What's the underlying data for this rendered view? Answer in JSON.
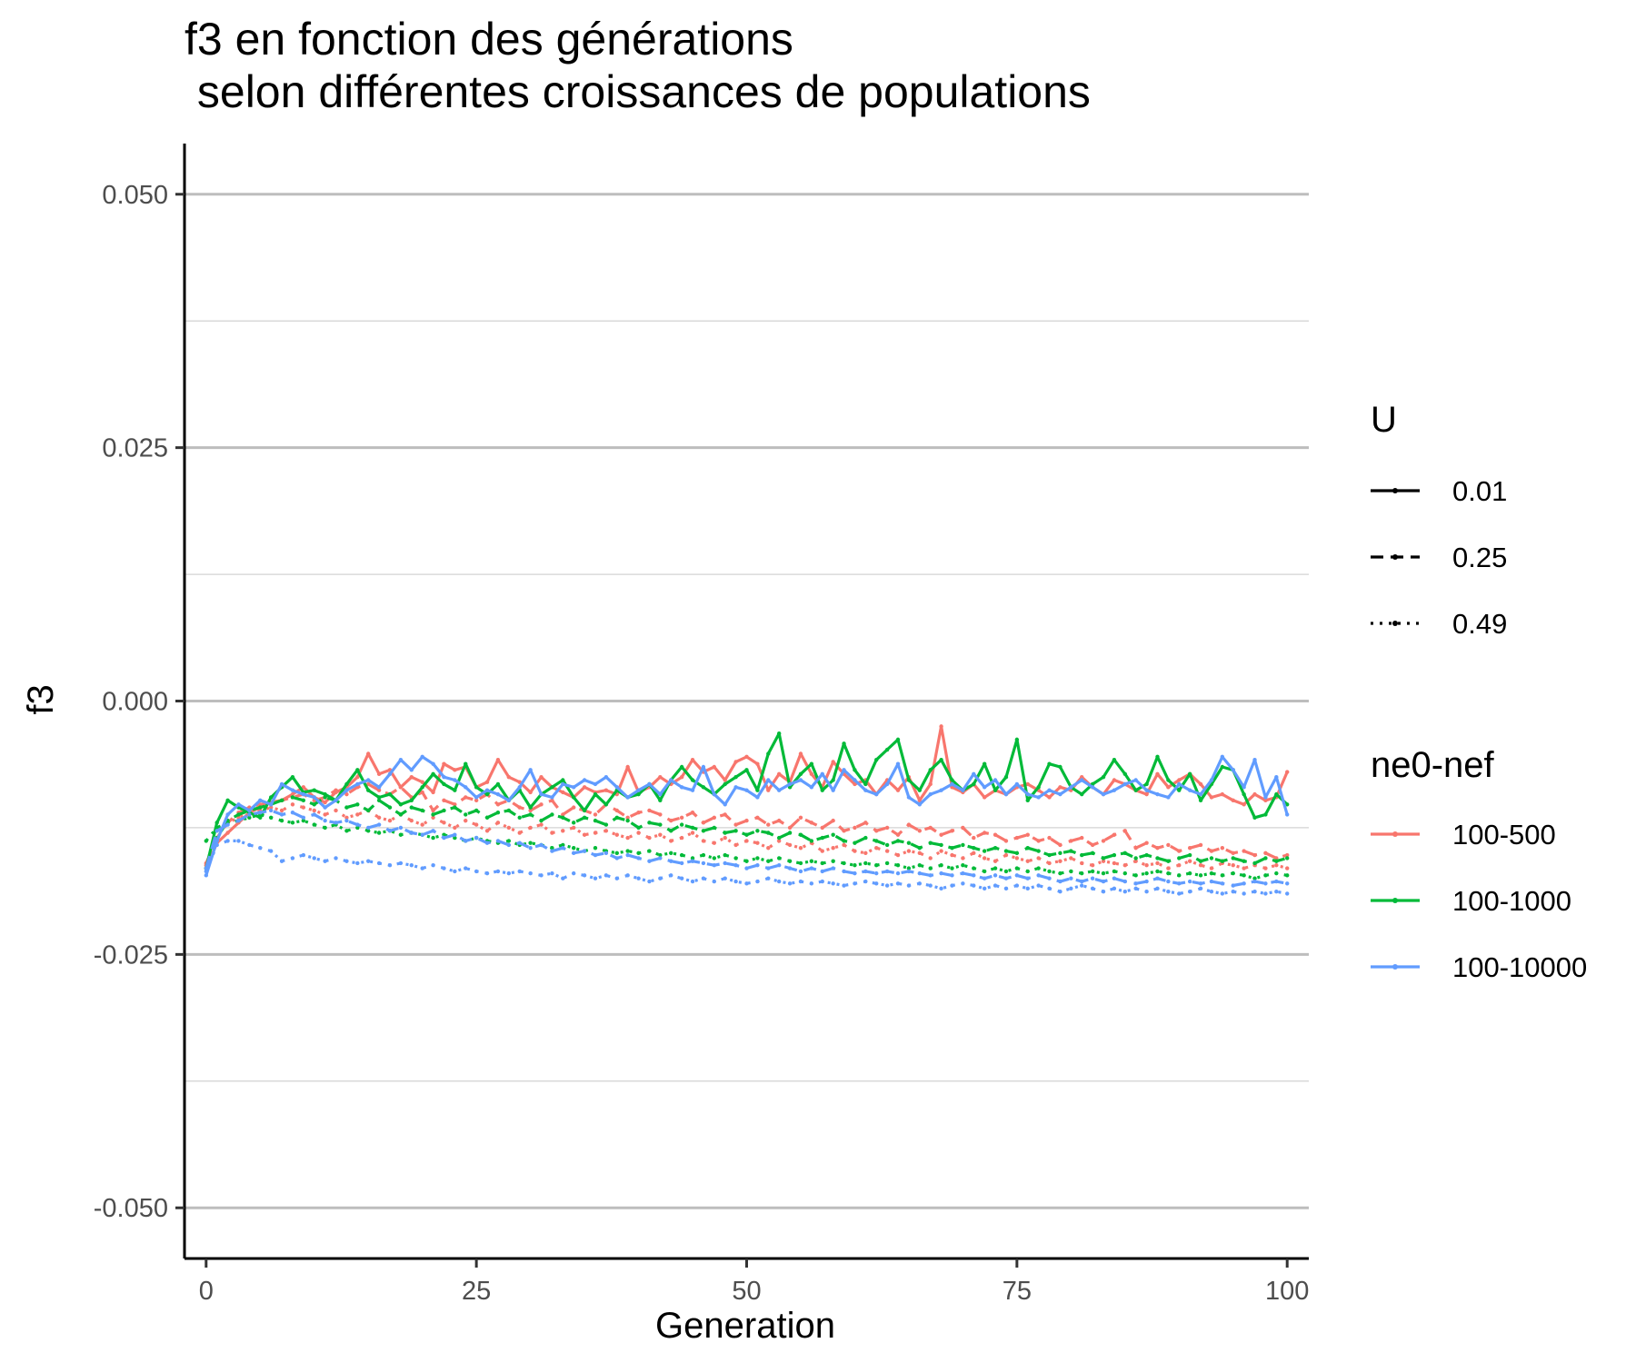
{
  "chart_data": {
    "type": "line",
    "title": "f3 en fonction des générations",
    "subtitle": " selon différentes croissances de populations",
    "xlabel": "Generation",
    "ylabel": "f3",
    "xlim": [
      -2,
      102
    ],
    "ylim": [
      -0.055,
      0.055
    ],
    "x_ticks": [
      0,
      25,
      50,
      75,
      100
    ],
    "x_tick_labels": [
      "0",
      "25",
      "50",
      "75",
      "100"
    ],
    "y_ticks": [
      0.05,
      0.025,
      0.0,
      -0.025,
      -0.05
    ],
    "y_tick_labels": [
      "0.050",
      "0.025",
      "0.000",
      "-0.025",
      "-0.050"
    ],
    "y_minor_gridlines": [
      0.0375,
      0.0125,
      -0.0125,
      -0.0375
    ],
    "grid": "horizontal",
    "legend_position": "right",
    "legend_linetype": {
      "title": "U",
      "entries": [
        {
          "label": "0.01",
          "dash": "solid"
        },
        {
          "label": "0.25",
          "dash": "dashed"
        },
        {
          "label": "0.49",
          "dash": "dotted"
        }
      ]
    },
    "legend_color": {
      "title": "ne0-nef",
      "entries": [
        {
          "label": "100-500",
          "color": "#F8766D"
        },
        {
          "label": "100-1000",
          "color": "#00BA38"
        },
        {
          "label": "100-10000",
          "color": "#619CFF"
        }
      ]
    },
    "x_range": {
      "start": 0,
      "end": 100,
      "step": 1
    },
    "series": [
      {
        "name": "100-500 / U=0.01",
        "color": "#F8766D",
        "dash": "solid",
        "values": [
          -0.0165,
          -0.014,
          -0.013,
          -0.012,
          -0.011,
          -0.0105,
          -0.01,
          -0.0098,
          -0.0092,
          -0.0085,
          -0.0095,
          -0.01,
          -0.009,
          -0.0085,
          -0.0075,
          -0.0052,
          -0.0072,
          -0.0068,
          -0.0085,
          -0.0075,
          -0.008,
          -0.009,
          -0.0062,
          -0.0068,
          -0.0065,
          -0.0085,
          -0.008,
          -0.0058,
          -0.0075,
          -0.008,
          -0.009,
          -0.0075,
          -0.0085,
          -0.009,
          -0.0095,
          -0.0085,
          -0.009,
          -0.0088,
          -0.0092,
          -0.0065,
          -0.009,
          -0.0085,
          -0.0075,
          -0.0082,
          -0.0075,
          -0.0058,
          -0.007,
          -0.0065,
          -0.0078,
          -0.006,
          -0.0055,
          -0.0062,
          -0.0088,
          -0.0072,
          -0.008,
          -0.0052,
          -0.0072,
          -0.0085,
          -0.006,
          -0.0072,
          -0.0082,
          -0.0078,
          -0.0092,
          -0.0078,
          -0.0088,
          -0.0075,
          -0.0098,
          -0.0082,
          -0.0025,
          -0.0085,
          -0.009,
          -0.0082,
          -0.0095,
          -0.0088,
          -0.0092,
          -0.0085,
          -0.0082,
          -0.0088,
          -0.0095,
          -0.0085,
          -0.0088,
          -0.0075,
          -0.0085,
          -0.0092,
          -0.0078,
          -0.0082,
          -0.0088,
          -0.0092,
          -0.0072,
          -0.0085,
          -0.0078,
          -0.0072,
          -0.0082,
          -0.0095,
          -0.0092,
          -0.0098,
          -0.0102,
          -0.0092,
          -0.0098,
          -0.0095,
          -0.007
        ]
      },
      {
        "name": "100-500 / U=0.25",
        "color": "#F8766D",
        "dash": "dashed",
        "values": [
          -0.016,
          -0.0135,
          -0.012,
          -0.011,
          -0.0105,
          -0.0102,
          -0.01,
          -0.0098,
          -0.0095,
          -0.0092,
          -0.0098,
          -0.0095,
          -0.0088,
          -0.0092,
          -0.0085,
          -0.0082,
          -0.0088,
          -0.0092,
          -0.0085,
          -0.0095,
          -0.009,
          -0.0108,
          -0.0098,
          -0.0102,
          -0.0095,
          -0.0098,
          -0.0092,
          -0.0102,
          -0.0098,
          -0.0105,
          -0.0108,
          -0.0102,
          -0.0098,
          -0.0112,
          -0.0105,
          -0.0108,
          -0.0112,
          -0.0102,
          -0.0108,
          -0.0115,
          -0.011,
          -0.0108,
          -0.0112,
          -0.0118,
          -0.0115,
          -0.011,
          -0.012,
          -0.0115,
          -0.0112,
          -0.0122,
          -0.0118,
          -0.0115,
          -0.0122,
          -0.0118,
          -0.0125,
          -0.0115,
          -0.012,
          -0.0125,
          -0.0118,
          -0.0128,
          -0.0125,
          -0.012,
          -0.0128,
          -0.0125,
          -0.0132,
          -0.0122,
          -0.0128,
          -0.0125,
          -0.0132,
          -0.0128,
          -0.0125,
          -0.0135,
          -0.013,
          -0.0132,
          -0.0138,
          -0.0135,
          -0.0132,
          -0.0138,
          -0.0135,
          -0.0142,
          -0.0138,
          -0.0135,
          -0.0142,
          -0.0138,
          -0.0132,
          -0.0128,
          -0.0145,
          -0.014,
          -0.0145,
          -0.0142,
          -0.0148,
          -0.0145,
          -0.0142,
          -0.0148,
          -0.0145,
          -0.015,
          -0.0148,
          -0.0152,
          -0.015,
          -0.0155,
          -0.0152
        ]
      },
      {
        "name": "100-500 / U=0.49",
        "color": "#F8766D",
        "dash": "dotted",
        "values": [
          -0.0162,
          -0.0128,
          -0.012,
          -0.0115,
          -0.011,
          -0.0108,
          -0.0105,
          -0.0108,
          -0.0102,
          -0.0105,
          -0.0108,
          -0.0112,
          -0.0108,
          -0.0115,
          -0.0112,
          -0.0108,
          -0.0115,
          -0.0118,
          -0.0112,
          -0.0118,
          -0.0122,
          -0.0115,
          -0.012,
          -0.0125,
          -0.0118,
          -0.0122,
          -0.0128,
          -0.012,
          -0.0125,
          -0.013,
          -0.0125,
          -0.0122,
          -0.013,
          -0.0128,
          -0.0125,
          -0.0132,
          -0.013,
          -0.0128,
          -0.0132,
          -0.0135,
          -0.013,
          -0.0135,
          -0.0132,
          -0.0138,
          -0.0135,
          -0.013,
          -0.0138,
          -0.014,
          -0.0135,
          -0.0142,
          -0.0138,
          -0.014,
          -0.0145,
          -0.0138,
          -0.0142,
          -0.0145,
          -0.014,
          -0.0148,
          -0.0145,
          -0.0142,
          -0.0148,
          -0.015,
          -0.0145,
          -0.0148,
          -0.0152,
          -0.0148,
          -0.015,
          -0.0155,
          -0.0148,
          -0.0152,
          -0.0155,
          -0.015,
          -0.0155,
          -0.0158,
          -0.0152,
          -0.0155,
          -0.0158,
          -0.0155,
          -0.016,
          -0.0158,
          -0.0155,
          -0.016,
          -0.0162,
          -0.0158,
          -0.016,
          -0.0162,
          -0.0158,
          -0.0162,
          -0.016,
          -0.0165,
          -0.0162,
          -0.0158,
          -0.0162,
          -0.0165,
          -0.016,
          -0.0162,
          -0.0165,
          -0.0162,
          -0.0165,
          -0.0162,
          -0.0165
        ]
      },
      {
        "name": "100-1000 / U=0.01",
        "color": "#00BA38",
        "dash": "solid",
        "values": [
          -0.0165,
          -0.012,
          -0.0098,
          -0.0105,
          -0.011,
          -0.0115,
          -0.0095,
          -0.0085,
          -0.0075,
          -0.009,
          -0.0088,
          -0.0092,
          -0.0098,
          -0.0082,
          -0.0068,
          -0.0088,
          -0.0095,
          -0.0092,
          -0.0102,
          -0.0098,
          -0.0085,
          -0.0072,
          -0.0082,
          -0.0088,
          -0.0062,
          -0.0085,
          -0.0092,
          -0.0082,
          -0.0098,
          -0.0088,
          -0.0105,
          -0.0092,
          -0.0085,
          -0.0078,
          -0.0095,
          -0.0108,
          -0.0092,
          -0.0102,
          -0.0088,
          -0.0095,
          -0.0092,
          -0.0082,
          -0.0098,
          -0.0078,
          -0.0065,
          -0.0078,
          -0.0085,
          -0.0092,
          -0.0082,
          -0.0075,
          -0.0068,
          -0.0088,
          -0.0052,
          -0.0032,
          -0.0085,
          -0.0072,
          -0.0062,
          -0.0088,
          -0.0078,
          -0.0042,
          -0.0068,
          -0.0082,
          -0.0058,
          -0.0048,
          -0.0038,
          -0.0078,
          -0.0088,
          -0.0068,
          -0.0058,
          -0.0078,
          -0.0088,
          -0.0082,
          -0.0062,
          -0.0088,
          -0.0075,
          -0.0038,
          -0.0098,
          -0.0085,
          -0.0062,
          -0.0065,
          -0.0085,
          -0.0092,
          -0.0082,
          -0.0075,
          -0.0058,
          -0.0072,
          -0.0088,
          -0.0082,
          -0.0055,
          -0.0078,
          -0.0088,
          -0.0072,
          -0.0098,
          -0.0082,
          -0.0065,
          -0.0068,
          -0.0092,
          -0.0115,
          -0.0112,
          -0.0092,
          -0.0102
        ]
      },
      {
        "name": "100-1000 / U=0.25",
        "color": "#00BA38",
        "dash": "dashed",
        "values": [
          -0.0165,
          -0.0135,
          -0.0118,
          -0.0112,
          -0.0108,
          -0.0105,
          -0.0102,
          -0.0098,
          -0.0095,
          -0.0098,
          -0.0102,
          -0.0095,
          -0.0098,
          -0.0105,
          -0.0102,
          -0.0108,
          -0.0098,
          -0.0105,
          -0.0112,
          -0.0105,
          -0.0108,
          -0.0112,
          -0.0108,
          -0.0105,
          -0.0112,
          -0.0108,
          -0.0115,
          -0.011,
          -0.0108,
          -0.0115,
          -0.0112,
          -0.0118,
          -0.0112,
          -0.0115,
          -0.012,
          -0.0115,
          -0.0118,
          -0.0122,
          -0.0115,
          -0.0118,
          -0.0125,
          -0.012,
          -0.0122,
          -0.0128,
          -0.0122,
          -0.0125,
          -0.0128,
          -0.0125,
          -0.013,
          -0.0128,
          -0.0132,
          -0.0128,
          -0.013,
          -0.0135,
          -0.013,
          -0.0132,
          -0.0138,
          -0.0135,
          -0.0132,
          -0.0138,
          -0.014,
          -0.0135,
          -0.0138,
          -0.0142,
          -0.0138,
          -0.014,
          -0.0145,
          -0.014,
          -0.0142,
          -0.0145,
          -0.0142,
          -0.0145,
          -0.0148,
          -0.0145,
          -0.0148,
          -0.015,
          -0.0145,
          -0.0148,
          -0.0152,
          -0.015,
          -0.0148,
          -0.0152,
          -0.015,
          -0.0155,
          -0.0152,
          -0.015,
          -0.0155,
          -0.0152,
          -0.0155,
          -0.0158,
          -0.0155,
          -0.0152,
          -0.0158,
          -0.0155,
          -0.0158,
          -0.0155,
          -0.0158,
          -0.016,
          -0.0155,
          -0.0158,
          -0.0155
        ]
      },
      {
        "name": "100-1000 / U=0.49",
        "color": "#00BA38",
        "dash": "dotted",
        "values": [
          -0.0138,
          -0.0125,
          -0.012,
          -0.0118,
          -0.0115,
          -0.0112,
          -0.0115,
          -0.0118,
          -0.012,
          -0.0118,
          -0.0122,
          -0.0125,
          -0.0122,
          -0.0128,
          -0.0125,
          -0.0128,
          -0.013,
          -0.0128,
          -0.0132,
          -0.013,
          -0.0132,
          -0.0135,
          -0.0132,
          -0.0135,
          -0.0138,
          -0.0135,
          -0.0138,
          -0.014,
          -0.0138,
          -0.0142,
          -0.014,
          -0.0142,
          -0.0145,
          -0.0142,
          -0.0145,
          -0.0148,
          -0.0145,
          -0.0148,
          -0.015,
          -0.0148,
          -0.015,
          -0.0148,
          -0.0152,
          -0.015,
          -0.0152,
          -0.0155,
          -0.0152,
          -0.0155,
          -0.0152,
          -0.0155,
          -0.0158,
          -0.0155,
          -0.0158,
          -0.0155,
          -0.0158,
          -0.016,
          -0.0158,
          -0.016,
          -0.0158,
          -0.016,
          -0.0162,
          -0.016,
          -0.0162,
          -0.016,
          -0.0162,
          -0.0165,
          -0.0162,
          -0.0165,
          -0.0162,
          -0.0165,
          -0.0162,
          -0.0165,
          -0.0168,
          -0.0165,
          -0.0168,
          -0.0165,
          -0.0168,
          -0.0165,
          -0.0168,
          -0.017,
          -0.0168,
          -0.017,
          -0.0168,
          -0.017,
          -0.0168,
          -0.017,
          -0.0172,
          -0.017,
          -0.0168,
          -0.017,
          -0.0172,
          -0.017,
          -0.0172,
          -0.017,
          -0.0172,
          -0.017,
          -0.0172,
          -0.0175,
          -0.0172,
          -0.017,
          -0.0172
        ]
      },
      {
        "name": "100-10000 / U=0.01",
        "color": "#619CFF",
        "dash": "solid",
        "values": [
          -0.0172,
          -0.0138,
          -0.0112,
          -0.0102,
          -0.0108,
          -0.0098,
          -0.0102,
          -0.0082,
          -0.0088,
          -0.0092,
          -0.0095,
          -0.0105,
          -0.0098,
          -0.0088,
          -0.0082,
          -0.0078,
          -0.0085,
          -0.0072,
          -0.0058,
          -0.0068,
          -0.0055,
          -0.0062,
          -0.0075,
          -0.0078,
          -0.0085,
          -0.0095,
          -0.0088,
          -0.0092,
          -0.0098,
          -0.0085,
          -0.0068,
          -0.0092,
          -0.0095,
          -0.0082,
          -0.0085,
          -0.0078,
          -0.0082,
          -0.0075,
          -0.0085,
          -0.0095,
          -0.0088,
          -0.0082,
          -0.0092,
          -0.0078,
          -0.0085,
          -0.0088,
          -0.0065,
          -0.0092,
          -0.0102,
          -0.0085,
          -0.0088,
          -0.0095,
          -0.0078,
          -0.0088,
          -0.0082,
          -0.0078,
          -0.0085,
          -0.0072,
          -0.0088,
          -0.0068,
          -0.0078,
          -0.0088,
          -0.0092,
          -0.0082,
          -0.0062,
          -0.0095,
          -0.0102,
          -0.0092,
          -0.0088,
          -0.0082,
          -0.0088,
          -0.0072,
          -0.0085,
          -0.0078,
          -0.0092,
          -0.0082,
          -0.0092,
          -0.0095,
          -0.0088,
          -0.0092,
          -0.0085,
          -0.0078,
          -0.0085,
          -0.0092,
          -0.0088,
          -0.0082,
          -0.0078,
          -0.0088,
          -0.0092,
          -0.0095,
          -0.0082,
          -0.0088,
          -0.0092,
          -0.0078,
          -0.0055,
          -0.0068,
          -0.0085,
          -0.0058,
          -0.0095,
          -0.0075,
          -0.0112
        ]
      },
      {
        "name": "100-10000 / U=0.25",
        "color": "#619CFF",
        "dash": "dashed",
        "values": [
          -0.0165,
          -0.0128,
          -0.0122,
          -0.0118,
          -0.0112,
          -0.011,
          -0.0108,
          -0.0112,
          -0.011,
          -0.0115,
          -0.0112,
          -0.0118,
          -0.012,
          -0.0118,
          -0.0122,
          -0.0125,
          -0.0122,
          -0.0128,
          -0.0125,
          -0.013,
          -0.0132,
          -0.0128,
          -0.0135,
          -0.0132,
          -0.0138,
          -0.0135,
          -0.014,
          -0.0138,
          -0.0142,
          -0.014,
          -0.0145,
          -0.0142,
          -0.0148,
          -0.0145,
          -0.015,
          -0.0148,
          -0.0152,
          -0.015,
          -0.0155,
          -0.0152,
          -0.0155,
          -0.0158,
          -0.0155,
          -0.0158,
          -0.016,
          -0.0158,
          -0.016,
          -0.0162,
          -0.016,
          -0.0162,
          -0.0165,
          -0.0162,
          -0.0165,
          -0.0162,
          -0.0165,
          -0.0168,
          -0.0165,
          -0.0168,
          -0.0165,
          -0.0168,
          -0.017,
          -0.0168,
          -0.017,
          -0.0168,
          -0.017,
          -0.0168,
          -0.017,
          -0.0172,
          -0.017,
          -0.0172,
          -0.017,
          -0.0172,
          -0.0175,
          -0.0172,
          -0.0175,
          -0.0172,
          -0.0175,
          -0.0172,
          -0.0175,
          -0.0178,
          -0.0175,
          -0.0178,
          -0.0175,
          -0.0178,
          -0.0175,
          -0.0178,
          -0.018,
          -0.0178,
          -0.0175,
          -0.0178,
          -0.018,
          -0.0178,
          -0.018,
          -0.0178,
          -0.018,
          -0.0182,
          -0.018,
          -0.0178,
          -0.018,
          -0.0178,
          -0.018
        ]
      },
      {
        "name": "100-10000 / U=0.49",
        "color": "#619CFF",
        "dash": "dotted",
        "values": [
          -0.0168,
          -0.0142,
          -0.0138,
          -0.0138,
          -0.0142,
          -0.0145,
          -0.0148,
          -0.0158,
          -0.0155,
          -0.0152,
          -0.0155,
          -0.0158,
          -0.0155,
          -0.0158,
          -0.016,
          -0.0158,
          -0.016,
          -0.0162,
          -0.016,
          -0.0162,
          -0.0165,
          -0.0162,
          -0.0165,
          -0.0168,
          -0.0165,
          -0.0168,
          -0.017,
          -0.0168,
          -0.017,
          -0.0168,
          -0.017,
          -0.0172,
          -0.017,
          -0.0175,
          -0.017,
          -0.0172,
          -0.0175,
          -0.0172,
          -0.0175,
          -0.0172,
          -0.0175,
          -0.0178,
          -0.0175,
          -0.0172,
          -0.0175,
          -0.0178,
          -0.0175,
          -0.0178,
          -0.0175,
          -0.0178,
          -0.018,
          -0.0178,
          -0.0175,
          -0.0178,
          -0.018,
          -0.0178,
          -0.018,
          -0.0178,
          -0.018,
          -0.0182,
          -0.018,
          -0.0178,
          -0.018,
          -0.0182,
          -0.018,
          -0.0182,
          -0.018,
          -0.0182,
          -0.0185,
          -0.0182,
          -0.018,
          -0.0182,
          -0.0185,
          -0.0182,
          -0.0185,
          -0.0182,
          -0.0185,
          -0.0182,
          -0.0185,
          -0.0188,
          -0.0185,
          -0.0182,
          -0.0185,
          -0.0188,
          -0.0185,
          -0.0188,
          -0.0185,
          -0.0188,
          -0.0185,
          -0.0188,
          -0.019,
          -0.0188,
          -0.0185,
          -0.0188,
          -0.019,
          -0.0188,
          -0.019,
          -0.0188,
          -0.019,
          -0.0188,
          -0.019
        ]
      }
    ]
  }
}
